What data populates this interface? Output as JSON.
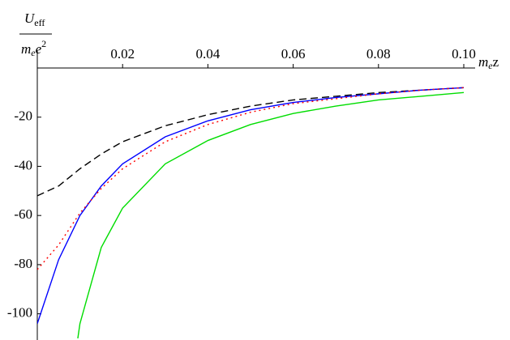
{
  "chart_data": {
    "type": "line",
    "ylabel_numerator": [
      "U",
      "eff"
    ],
    "ylabel_denominator": [
      "m",
      "e",
      "e",
      "2"
    ],
    "xlabel": [
      "m",
      "e",
      "z"
    ],
    "xlim": [
      0,
      0.1
    ],
    "ylim": [
      -110,
      0
    ],
    "xticks": [
      0.02,
      0.04,
      0.06,
      0.08,
      {
        "value": 0.1,
        "label": "0.10"
      }
    ],
    "yticks": [
      -20,
      -40,
      -60,
      -80,
      -100
    ],
    "series": [
      {
        "color": "#000000",
        "dash": "dashed",
        "x": [
          0,
          0.005,
          0.01,
          0.015,
          0.02,
          0.03,
          0.04,
          0.05,
          0.06,
          0.07,
          0.08,
          0.09,
          0.1
        ],
        "values": [
          -52,
          -48,
          -41,
          -35,
          -30,
          -23.5,
          -19,
          -15.5,
          -13,
          -11.5,
          -10,
          -9,
          -8
        ]
      },
      {
        "color": "#0000ff",
        "dash": "solid",
        "x": [
          0,
          0.005,
          0.01,
          0.015,
          0.02,
          0.03,
          0.04,
          0.05,
          0.06,
          0.07,
          0.08,
          0.09,
          0.1
        ],
        "values": [
          -104,
          -78,
          -60,
          -48,
          -39,
          -28,
          -21.5,
          -17,
          -14,
          -12,
          -10.5,
          -9,
          -8
        ]
      },
      {
        "color": "#ff0000",
        "dash": "dotted",
        "x": [
          0,
          0.005,
          0.01,
          0.015,
          0.02,
          0.03,
          0.04,
          0.05,
          0.06,
          0.07,
          0.08,
          0.09,
          0.1
        ],
        "values": [
          -82,
          -72,
          -59,
          -49,
          -41,
          -30,
          -23,
          -18,
          -14.5,
          -12.5,
          -10.5,
          -9,
          -8
        ]
      },
      {
        "color": "#00dd00",
        "dash": "solid",
        "x": [
          0.0095,
          0.01,
          0.015,
          0.02,
          0.03,
          0.04,
          0.05,
          0.06,
          0.07,
          0.08,
          0.09,
          0.1
        ],
        "values": [
          -110,
          -104,
          -73,
          -57,
          -39,
          -29.5,
          -23,
          -18.5,
          -15.5,
          -13,
          -11.5,
          -10
        ]
      }
    ]
  }
}
